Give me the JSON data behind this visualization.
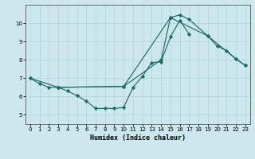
{
  "xlabel": "Humidex (Indice chaleur)",
  "bg_color": "#cce8ee",
  "line_color": "#1f6b65",
  "grid_color": "#aed4da",
  "xlim": [
    -0.5,
    23.5
  ],
  "ylim": [
    4.5,
    11.0
  ],
  "yticks": [
    5,
    6,
    7,
    8,
    9,
    10
  ],
  "xticks": [
    0,
    1,
    2,
    3,
    4,
    5,
    6,
    7,
    8,
    9,
    10,
    11,
    12,
    13,
    14,
    15,
    16,
    17,
    18,
    19,
    20,
    21,
    22,
    23
  ],
  "line1_x": [
    0,
    1,
    2,
    3,
    4,
    5,
    6,
    7,
    8,
    9,
    10,
    11,
    12,
    13,
    14,
    15,
    16,
    17
  ],
  "line1_y": [
    7.0,
    6.7,
    6.5,
    6.5,
    6.3,
    6.05,
    5.75,
    5.35,
    5.35,
    5.35,
    5.4,
    6.5,
    7.1,
    7.85,
    7.9,
    9.25,
    10.15,
    9.4
  ],
  "line2_x": [
    0,
    3,
    10,
    14,
    15,
    16,
    17,
    19,
    20,
    21,
    22,
    23
  ],
  "line2_y": [
    7.0,
    6.5,
    6.55,
    8.0,
    10.3,
    10.45,
    10.2,
    9.3,
    8.75,
    8.5,
    8.05,
    7.7
  ],
  "line3_x": [
    3,
    10,
    15,
    19,
    22,
    23
  ],
  "line3_y": [
    6.5,
    6.55,
    10.3,
    9.3,
    8.05,
    7.7
  ],
  "marker": "D",
  "marker_size": 2.2,
  "linewidth": 0.85
}
